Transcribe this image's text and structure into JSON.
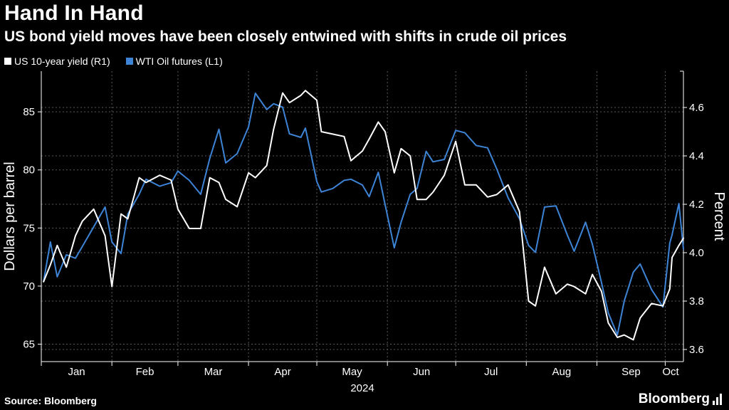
{
  "header": {
    "title": "Hand In Hand",
    "subtitle": "US bond yield moves have been closely entwined with shifts in crude oil prices"
  },
  "legend": {
    "items": [
      {
        "label": "US 10-year yield (R1)",
        "color": "#ffffff"
      },
      {
        "label": "WTI Oil futures  (L1)",
        "color": "#3d84d6"
      }
    ]
  },
  "footer": {
    "source": "Source: Bloomberg",
    "brand": "Bloomberg"
  },
  "chart_data": {
    "type": "line",
    "x_labels": [
      "Jan",
      "Feb",
      "Mar",
      "Apr",
      "May",
      "Jun",
      "Jul",
      "Aug",
      "Sep",
      "Oct"
    ],
    "x_year_label": "2024",
    "x_range": [
      "2024-01-01",
      "2024-10-09"
    ],
    "ylabel_left": "Dollars per barrel",
    "ylabel_right": "Percent",
    "ylim_left": [
      63.5,
      88.5
    ],
    "ylim_right": [
      3.55,
      4.75
    ],
    "yticks_left": [
      65,
      70,
      75,
      80,
      85
    ],
    "yticks_right": [
      "3.6",
      "3.8",
      "4.0",
      "4.2",
      "4.4",
      "4.6"
    ],
    "grid": true,
    "legend_position": "top-left",
    "series": [
      {
        "name": "US 10-year yield (R1)",
        "axis": "right",
        "color": "#ffffff",
        "points": [
          [
            "2024-01-02",
            3.88
          ],
          [
            "2024-01-05",
            3.95
          ],
          [
            "2024-01-08",
            4.03
          ],
          [
            "2024-01-12",
            3.94
          ],
          [
            "2024-01-16",
            4.07
          ],
          [
            "2024-01-19",
            4.13
          ],
          [
            "2024-01-24",
            4.18
          ],
          [
            "2024-01-29",
            4.07
          ],
          [
            "2024-02-01",
            3.86
          ],
          [
            "2024-02-05",
            4.16
          ],
          [
            "2024-02-08",
            4.14
          ],
          [
            "2024-02-13",
            4.31
          ],
          [
            "2024-02-16",
            4.29
          ],
          [
            "2024-02-22",
            4.32
          ],
          [
            "2024-02-27",
            4.3
          ],
          [
            "2024-03-01",
            4.18
          ],
          [
            "2024-03-06",
            4.1
          ],
          [
            "2024-03-11",
            4.1
          ],
          [
            "2024-03-15",
            4.31
          ],
          [
            "2024-03-19",
            4.29
          ],
          [
            "2024-03-22",
            4.22
          ],
          [
            "2024-03-27",
            4.19
          ],
          [
            "2024-04-01",
            4.33
          ],
          [
            "2024-04-04",
            4.31
          ],
          [
            "2024-04-09",
            4.36
          ],
          [
            "2024-04-12",
            4.51
          ],
          [
            "2024-04-16",
            4.66
          ],
          [
            "2024-04-19",
            4.62
          ],
          [
            "2024-04-24",
            4.65
          ],
          [
            "2024-04-26",
            4.67
          ],
          [
            "2024-05-01",
            4.63
          ],
          [
            "2024-05-03",
            4.5
          ],
          [
            "2024-05-08",
            4.49
          ],
          [
            "2024-05-13",
            4.48
          ],
          [
            "2024-05-16",
            4.38
          ],
          [
            "2024-05-21",
            4.42
          ],
          [
            "2024-05-24",
            4.47
          ],
          [
            "2024-05-28",
            4.54
          ],
          [
            "2024-05-31",
            4.5
          ],
          [
            "2024-06-04",
            4.33
          ],
          [
            "2024-06-07",
            4.43
          ],
          [
            "2024-06-11",
            4.4
          ],
          [
            "2024-06-14",
            4.22
          ],
          [
            "2024-06-18",
            4.22
          ],
          [
            "2024-06-21",
            4.25
          ],
          [
            "2024-06-26",
            4.32
          ],
          [
            "2024-07-01",
            4.46
          ],
          [
            "2024-07-05",
            4.28
          ],
          [
            "2024-07-10",
            4.28
          ],
          [
            "2024-07-15",
            4.23
          ],
          [
            "2024-07-19",
            4.24
          ],
          [
            "2024-07-24",
            4.28
          ],
          [
            "2024-07-29",
            4.17
          ],
          [
            "2024-08-02",
            3.8
          ],
          [
            "2024-08-05",
            3.78
          ],
          [
            "2024-08-09",
            3.94
          ],
          [
            "2024-08-14",
            3.83
          ],
          [
            "2024-08-19",
            3.87
          ],
          [
            "2024-08-22",
            3.86
          ],
          [
            "2024-08-27",
            3.83
          ],
          [
            "2024-08-30",
            3.91
          ],
          [
            "2024-09-03",
            3.84
          ],
          [
            "2024-09-06",
            3.71
          ],
          [
            "2024-09-10",
            3.65
          ],
          [
            "2024-09-13",
            3.66
          ],
          [
            "2024-09-17",
            3.64
          ],
          [
            "2024-09-20",
            3.73
          ],
          [
            "2024-09-25",
            3.79
          ],
          [
            "2024-09-30",
            3.78
          ],
          [
            "2024-10-03",
            3.85
          ],
          [
            "2024-10-04",
            3.98
          ],
          [
            "2024-10-07",
            4.03
          ],
          [
            "2024-10-09",
            4.06
          ]
        ]
      },
      {
        "name": "WTI Oil futures  (L1)",
        "axis": "left",
        "color": "#3d84d6",
        "points": [
          [
            "2024-01-02",
            70.4
          ],
          [
            "2024-01-05",
            73.8
          ],
          [
            "2024-01-08",
            70.8
          ],
          [
            "2024-01-12",
            72.7
          ],
          [
            "2024-01-16",
            72.4
          ],
          [
            "2024-01-19",
            73.4
          ],
          [
            "2024-01-24",
            75.1
          ],
          [
            "2024-01-29",
            76.8
          ],
          [
            "2024-02-01",
            73.8
          ],
          [
            "2024-02-05",
            72.8
          ],
          [
            "2024-02-08",
            76.2
          ],
          [
            "2024-02-13",
            77.9
          ],
          [
            "2024-02-16",
            79.2
          ],
          [
            "2024-02-22",
            78.6
          ],
          [
            "2024-02-27",
            78.9
          ],
          [
            "2024-03-01",
            79.9
          ],
          [
            "2024-03-06",
            79.1
          ],
          [
            "2024-03-11",
            77.9
          ],
          [
            "2024-03-15",
            81.0
          ],
          [
            "2024-03-19",
            83.5
          ],
          [
            "2024-03-22",
            80.6
          ],
          [
            "2024-03-27",
            81.4
          ],
          [
            "2024-04-01",
            83.7
          ],
          [
            "2024-04-04",
            86.6
          ],
          [
            "2024-04-09",
            85.2
          ],
          [
            "2024-04-12",
            85.7
          ],
          [
            "2024-04-16",
            85.4
          ],
          [
            "2024-04-19",
            83.1
          ],
          [
            "2024-04-24",
            82.8
          ],
          [
            "2024-04-26",
            83.6
          ],
          [
            "2024-05-01",
            79.0
          ],
          [
            "2024-05-03",
            78.1
          ],
          [
            "2024-05-08",
            78.4
          ],
          [
            "2024-05-13",
            79.1
          ],
          [
            "2024-05-16",
            79.2
          ],
          [
            "2024-05-21",
            78.7
          ],
          [
            "2024-05-24",
            77.7
          ],
          [
            "2024-05-28",
            79.8
          ],
          [
            "2024-05-31",
            77.0
          ],
          [
            "2024-06-04",
            73.3
          ],
          [
            "2024-06-07",
            75.5
          ],
          [
            "2024-06-11",
            77.9
          ],
          [
            "2024-06-14",
            78.4
          ],
          [
            "2024-06-18",
            81.6
          ],
          [
            "2024-06-21",
            80.7
          ],
          [
            "2024-06-26",
            80.9
          ],
          [
            "2024-07-01",
            83.4
          ],
          [
            "2024-07-05",
            83.2
          ],
          [
            "2024-07-10",
            82.1
          ],
          [
            "2024-07-15",
            81.9
          ],
          [
            "2024-07-19",
            80.1
          ],
          [
            "2024-07-24",
            77.6
          ],
          [
            "2024-07-29",
            75.8
          ],
          [
            "2024-08-02",
            73.5
          ],
          [
            "2024-08-05",
            72.9
          ],
          [
            "2024-08-09",
            76.8
          ],
          [
            "2024-08-14",
            76.9
          ],
          [
            "2024-08-19",
            74.4
          ],
          [
            "2024-08-22",
            73.0
          ],
          [
            "2024-08-27",
            75.5
          ],
          [
            "2024-08-30",
            73.6
          ],
          [
            "2024-09-03",
            70.3
          ],
          [
            "2024-09-06",
            67.7
          ],
          [
            "2024-09-10",
            65.8
          ],
          [
            "2024-09-13",
            68.7
          ],
          [
            "2024-09-17",
            71.2
          ],
          [
            "2024-09-20",
            71.9
          ],
          [
            "2024-09-25",
            69.7
          ],
          [
            "2024-09-30",
            68.2
          ],
          [
            "2024-10-03",
            73.7
          ],
          [
            "2024-10-04",
            74.4
          ],
          [
            "2024-10-07",
            77.1
          ],
          [
            "2024-10-09",
            73.2
          ]
        ]
      }
    ]
  }
}
